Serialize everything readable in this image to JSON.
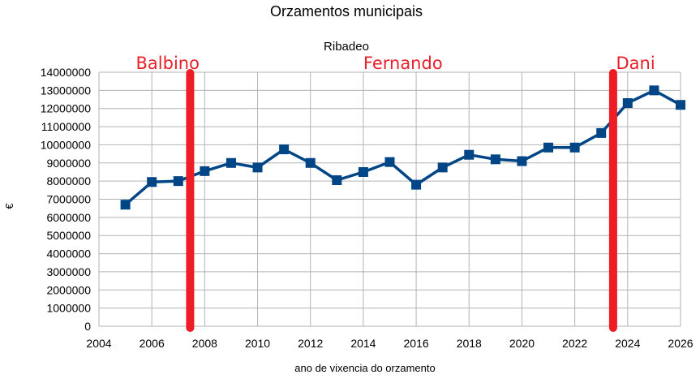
{
  "chart_data": {
    "type": "line",
    "title": "Orzamentos municipais",
    "subtitle": "Ribadeo",
    "xlabel": "ano de vixencia do orzamento",
    "ylabel": "€",
    "xlim": [
      2004,
      2026
    ],
    "ylim": [
      0,
      14000000
    ],
    "x_ticks": [
      2004,
      2006,
      2008,
      2010,
      2012,
      2014,
      2016,
      2018,
      2020,
      2022,
      2024,
      2026
    ],
    "y_ticks": [
      0,
      1000000,
      2000000,
      3000000,
      4000000,
      5000000,
      6000000,
      7000000,
      8000000,
      9000000,
      10000000,
      11000000,
      12000000,
      13000000,
      14000000
    ],
    "grid": true,
    "series": [
      {
        "color": "#004586",
        "marker": "square",
        "x": [
          2005,
          2006,
          2007,
          2008,
          2009,
          2010,
          2011,
          2012,
          2013,
          2014,
          2015,
          2016,
          2017,
          2018,
          2019,
          2020,
          2021,
          2022,
          2023,
          2024,
          2025,
          2026
        ],
        "y": [
          6700000,
          7950000,
          8000000,
          8550000,
          9000000,
          8750000,
          9750000,
          9000000,
          8050000,
          8500000,
          9050000,
          7800000,
          8750000,
          9450000,
          9200000,
          9100000,
          9850000,
          9850000,
          10650000,
          12300000,
          13000000,
          12200000
        ]
      }
    ],
    "annotations": [
      {
        "text": "Balbino",
        "x": 2006.6
      },
      {
        "text": "Fernando",
        "x": 2015.5
      },
      {
        "text": "Dani",
        "x": 2024.3
      }
    ],
    "vertical_markers": [
      {
        "x": 2007.45,
        "color": "#ee1c24"
      },
      {
        "x": 2023.45,
        "color": "#ee1c24"
      }
    ]
  }
}
